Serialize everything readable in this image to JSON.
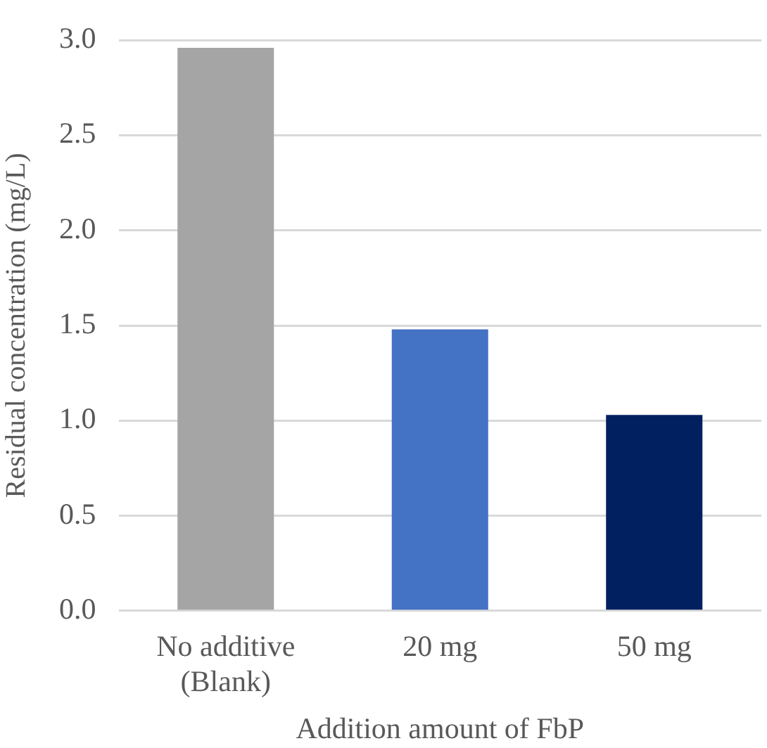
{
  "chart_data": {
    "type": "bar",
    "xlabel": "Addition amount of FbP",
    "ylabel": "Residual concentration (mg/L)",
    "categories": [
      "No additive (Blank)",
      "20 mg",
      "50 mg"
    ],
    "values": [
      2.96,
      1.48,
      1.03
    ],
    "colors": [
      "#a5a5a5",
      "#4472c4",
      "#002060"
    ],
    "ylim": [
      0,
      3
    ],
    "yticks": [
      {
        "value": 0,
        "label": "0.0"
      },
      {
        "value": 0.5,
        "label": "0.5"
      },
      {
        "value": 1,
        "label": "1.0"
      },
      {
        "value": 1.5,
        "label": "1.5"
      },
      {
        "value": 2,
        "label": "2.0"
      },
      {
        "value": 2.5,
        "label": "2.5"
      },
      {
        "value": 3,
        "label": "3.0"
      }
    ],
    "grid": "y",
    "legend": false
  }
}
